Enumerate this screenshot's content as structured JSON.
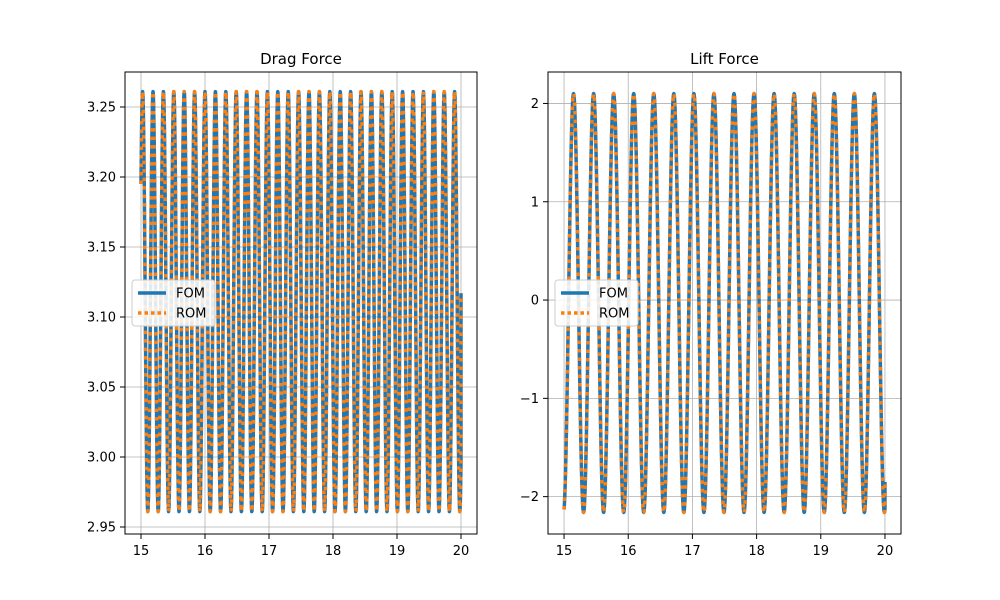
{
  "chart_data": [
    {
      "type": "line",
      "title": "Drag Force",
      "xlabel": "",
      "ylabel": "",
      "xlim": [
        14.75,
        20.25
      ],
      "ylim": [
        2.945,
        3.275
      ],
      "xticks": [
        15,
        16,
        17,
        18,
        19,
        20
      ],
      "xtick_labels": [
        "15",
        "16",
        "17",
        "18",
        "19",
        "20"
      ],
      "yticks": [
        2.95,
        3.0,
        3.05,
        3.1,
        3.15,
        3.2,
        3.25
      ],
      "ytick_labels": [
        "2.95",
        "3.00",
        "3.05",
        "3.10",
        "3.15",
        "3.20",
        "3.25"
      ],
      "grid": true,
      "legend": "center-left",
      "signal": {
        "t_start": 15.0,
        "t_end": 20.0,
        "mean": 3.111,
        "amplitude": 0.15,
        "period": 0.1625,
        "start_value": 3.195,
        "end_value": 3.117
      },
      "series": [
        {
          "name": "FOM",
          "color": "#1f77b4",
          "style": "solid"
        },
        {
          "name": "ROM",
          "color": "#ff7f0e",
          "style": "dotted"
        }
      ]
    },
    {
      "type": "line",
      "title": "Lift Force",
      "xlabel": "",
      "ylabel": "",
      "xlim": [
        14.75,
        20.25
      ],
      "ylim": [
        -2.38,
        2.32
      ],
      "xticks": [
        15,
        16,
        17,
        18,
        19,
        20
      ],
      "xtick_labels": [
        "15",
        "16",
        "17",
        "18",
        "19",
        "20"
      ],
      "yticks": [
        -2,
        -1,
        0,
        1,
        2
      ],
      "ytick_labels": [
        "−2",
        "−1",
        "0",
        "1",
        "2"
      ],
      "grid": true,
      "legend": "center-left",
      "signal": {
        "t_start": 15.0,
        "t_end": 20.0,
        "mean": -0.03,
        "amplitude": 2.13,
        "period": 0.3125,
        "start_value": -2.13,
        "end_value": -1.85
      },
      "series": [
        {
          "name": "FOM",
          "color": "#1f77b4",
          "style": "solid"
        },
        {
          "name": "ROM",
          "color": "#ff7f0e",
          "style": "dotted"
        }
      ]
    }
  ]
}
